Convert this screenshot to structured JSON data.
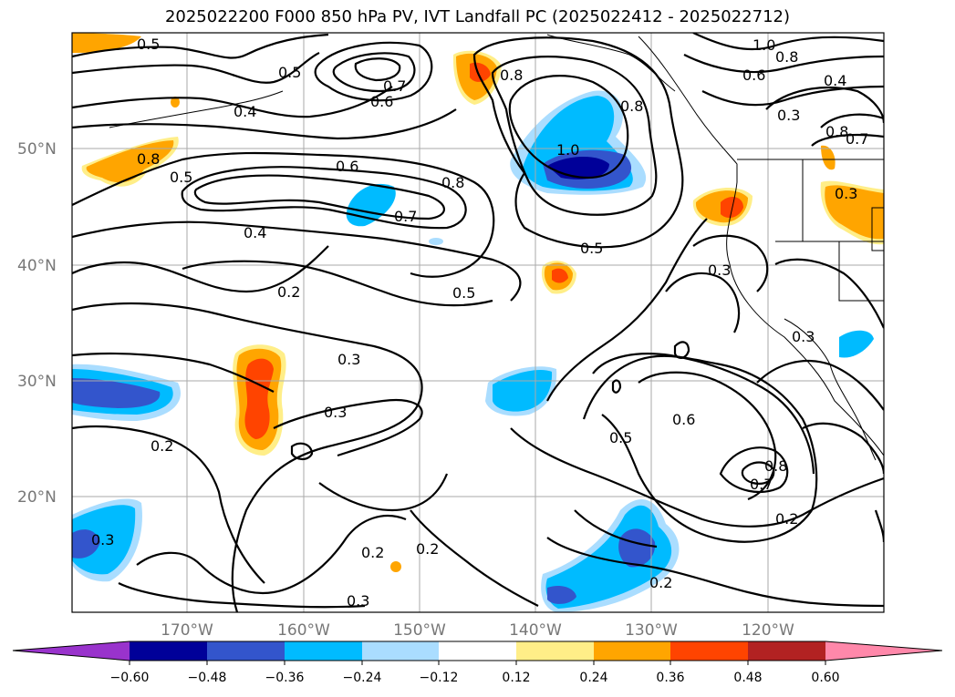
{
  "title": "2025022200 F000 850 hPa PV, IVT Landfall PC (2025022412 - 2025022712)",
  "lat_labels": [
    "50°N",
    "40°N",
    "30°N",
    "20°N"
  ],
  "lon_labels": [
    "170°W",
    "160°W",
    "150°W",
    "140°W",
    "130°W",
    "120°W"
  ],
  "contour_labels": [
    "0.5",
    "0.5",
    "0.6",
    "0.7",
    "0.4",
    "0.8",
    "0.8",
    "1.0",
    "0.8",
    "0.6",
    "0.4",
    "0.3",
    "0.7",
    "0.8",
    "0.8",
    "1.0",
    "0.5",
    "0.6",
    "0.8",
    "0.7",
    "0.4",
    "0.5",
    "0.2",
    "0.5",
    "0.3",
    "0.3",
    "0.3",
    "0.2",
    "0.6",
    "0.5",
    "0.7",
    "0.8",
    "0.3",
    "0.2",
    "0.2",
    "0.2",
    "0.2",
    "0.3",
    "0.3",
    "0.3"
  ],
  "colorbar": {
    "tick_labels": [
      "−0.60",
      "−0.48",
      "−0.36",
      "−0.24",
      "−0.12",
      "0.12",
      "0.24",
      "0.36",
      "0.48",
      "0.60"
    ],
    "colors": [
      "#9933cc",
      "#000099",
      "#3355cc",
      "#00bbff",
      "#aaddff",
      "#ffffff",
      "#ffee88",
      "#ffa500",
      "#ff4400",
      "#b22222",
      "#ff88aa"
    ]
  }
}
